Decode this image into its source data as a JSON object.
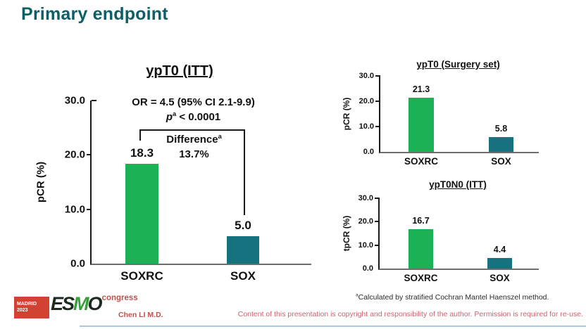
{
  "slide": {
    "title": "Primary endpoint",
    "presenter": "Chen LI M.D.",
    "copyright": "Content of this presentation is copyright and responsibility of the author. Permission is required for re-use.",
    "footnote_sup": "a",
    "footnote_text": "Calculated by stratified Cochran Mantel Haenszel method.",
    "logo": {
      "city": "MADRID",
      "year": "2023",
      "letters": [
        "E",
        "S",
        "M",
        "O"
      ],
      "suffix": "congress"
    }
  },
  "colors": {
    "soxrc_green": "#1cb157",
    "sox_teal": "#15727e",
    "heading_teal": "#0d5f66",
    "accent_red": "#c0504d"
  },
  "chart_data": [
    {
      "type": "bar",
      "title": "ypT0 (ITT)",
      "ylabel": "pCR (%)",
      "ylim": [
        0,
        30
      ],
      "yticks": [
        "30.0",
        "20.0",
        "10.0",
        "0.0"
      ],
      "grid": false,
      "categories": [
        "SOXRC",
        "SOX"
      ],
      "values": [
        18.3,
        5.0
      ],
      "value_labels": [
        "18.3",
        "5.0"
      ],
      "annotations": {
        "or_text": "OR = 4.5 (95% CI 2.1-9.9)",
        "p_var": "p",
        "p_sup": "a",
        "p_rest": " < 0.0001",
        "diff_word": "Difference",
        "diff_sup": "a",
        "diff_value": "13.7%"
      }
    },
    {
      "type": "bar",
      "title": "ypT0 (Surgery set)",
      "ylabel": "pCR (%)",
      "ylim": [
        0,
        30
      ],
      "yticks": [
        "30.0",
        "20.0",
        "10.0",
        "0.0"
      ],
      "grid": false,
      "categories": [
        "SOXRC",
        "SOX"
      ],
      "values": [
        21.3,
        5.8
      ],
      "value_labels": [
        "21.3",
        "5.8"
      ]
    },
    {
      "type": "bar",
      "title": "ypT0N0 (ITT)",
      "ylabel": "tpCR (%)",
      "ylim": [
        0,
        30
      ],
      "yticks": [
        "30.0",
        "20.0",
        "10.0",
        "0.0"
      ],
      "grid": false,
      "categories": [
        "SOXRC",
        "SOX"
      ],
      "values": [
        16.7,
        4.4
      ],
      "value_labels": [
        "16.7",
        "4.4"
      ]
    }
  ]
}
